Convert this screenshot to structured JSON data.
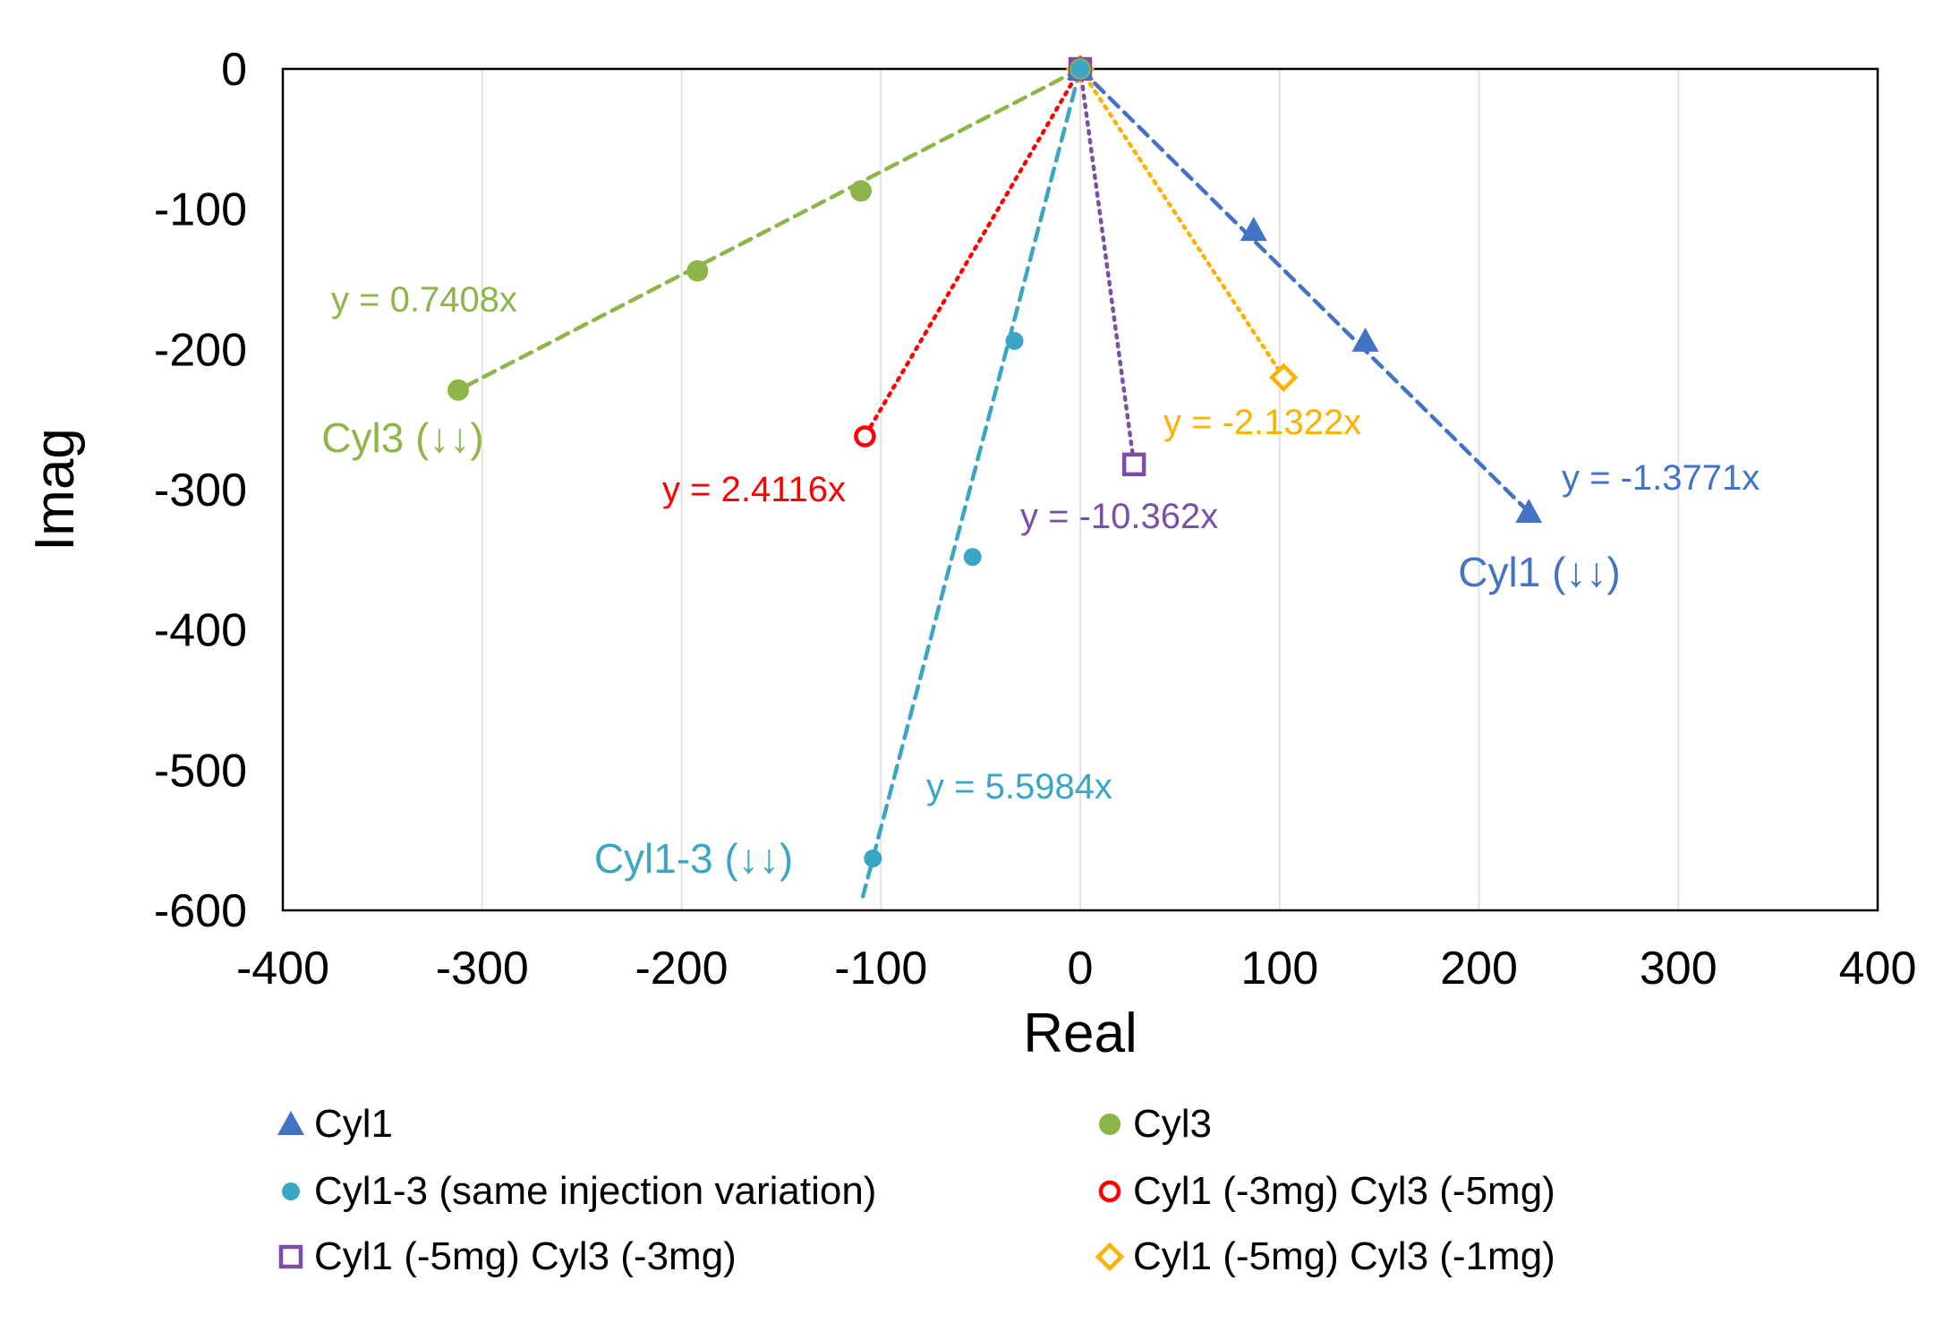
{
  "chart_data": {
    "type": "scatter",
    "title": "",
    "xlabel": "Real",
    "ylabel": "Imag",
    "xlim": [
      -400,
      400
    ],
    "ylim": [
      -600,
      0
    ],
    "xticks": [
      -400,
      -300,
      -200,
      -100,
      0,
      100,
      200,
      300,
      400
    ],
    "yticks": [
      0,
      -100,
      -200,
      -300,
      -400,
      -500,
      -600
    ],
    "xtick_labels": [
      "-400",
      "-300",
      "-200",
      "-100",
      "0",
      "100",
      "200",
      "300",
      "400"
    ],
    "ytick_labels": [
      "0",
      "-100",
      "-200",
      "-300",
      "-400",
      "-500",
      "-600"
    ],
    "grid": "vertical",
    "series": [
      {
        "name": "Cyl1",
        "marker": "triangle",
        "color": "#4472C4",
        "line_style": "dashed",
        "x": [
          0,
          87,
          143,
          225
        ],
        "y": [
          0,
          -115,
          -194,
          -316
        ],
        "fit_label": "y = -1.3771x",
        "series_label": "Cyl1 (↓↓)"
      },
      {
        "name": "Cyl3",
        "marker": "circle",
        "color": "#8DB54A",
        "line_style": "dashed",
        "x": [
          0,
          -110,
          -192,
          -312
        ],
        "y": [
          0,
          -87,
          -144,
          -229
        ],
        "fit_label": "y = 0.7408x",
        "series_label": "Cyl3 (↓↓)"
      },
      {
        "name": "Cyl1-3 (same injection variation)",
        "marker": "circle-small",
        "color": "#3AA6C4",
        "line_style": "dashed",
        "x": [
          0,
          -33,
          -54,
          -104
        ],
        "y": [
          0,
          -194,
          -348,
          -563
        ],
        "fit_label": "y = 5.5984x",
        "series_label": "Cyl1-3 (↓↓)"
      },
      {
        "name": "Cyl1 (-3mg) Cyl3 (-5mg)",
        "marker": "circle-open",
        "color": "#FF0000",
        "line_style": "dotted",
        "x": [
          0,
          -108
        ],
        "y": [
          0,
          -262
        ],
        "fit_label": "y = 2.4116x"
      },
      {
        "name": "Cyl1 (-5mg) Cyl3 (-3mg)",
        "marker": "square-open",
        "color": "#7B4FA6",
        "line_style": "dotted",
        "x": [
          0,
          27
        ],
        "y": [
          0,
          -282
        ],
        "fit_label": "y = -10.362x"
      },
      {
        "name": "Cyl1 (-5mg) Cyl3 (-1mg)",
        "marker": "diamond-open",
        "color": "#FFB000",
        "line_style": "dotted",
        "x": [
          0,
          102
        ],
        "y": [
          0,
          -220
        ],
        "fit_label": "y = -2.1322x"
      }
    ],
    "legend": {
      "position": "bottom",
      "entries": [
        "Cyl1",
        "Cyl3",
        "Cyl1-3 (same injection variation)",
        "Cyl1 (-3mg) Cyl3 (-5mg)",
        "Cyl1 (-5mg) Cyl3 (-3mg)",
        "Cyl1 (-5mg) Cyl3 (-1mg)"
      ]
    }
  }
}
